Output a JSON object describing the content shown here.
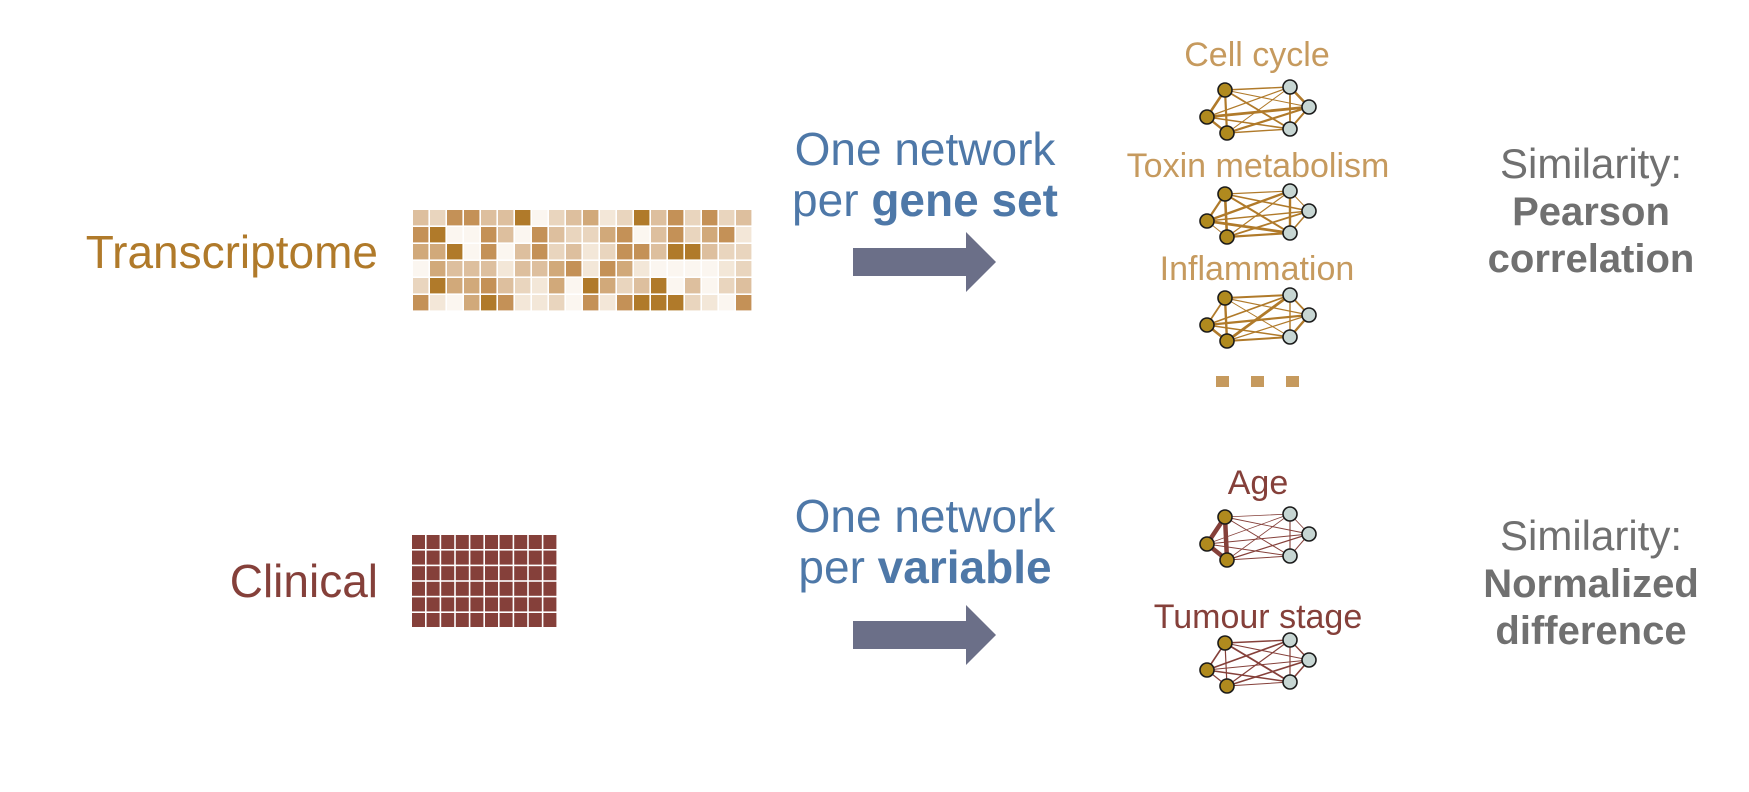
{
  "colors": {
    "transcriptome": "#B07A2A",
    "transcriptome_light": "#C69A5E",
    "clinical": "#85403A",
    "blue": "#4E78A8",
    "arrow": "#6B6F88",
    "gray": "#707070",
    "node_gold": "#B08A1E",
    "node_blue": "#C7D6D3"
  },
  "rows": [
    {
      "id": "transcriptome",
      "data_label": "Transcriptome",
      "arrow_text_line1": "One network",
      "arrow_text_prefix": "per ",
      "arrow_text_bold": "gene set",
      "networks": [
        "Cell cycle",
        "Toxin metabolism",
        "Inflammation"
      ],
      "ellipsis": "…",
      "similarity_label": "Similarity:",
      "similarity_method_line1": "Pearson",
      "similarity_method_line2": "correlation"
    },
    {
      "id": "clinical",
      "data_label": "Clinical",
      "arrow_text_line1": "One network",
      "arrow_text_prefix": "per ",
      "arrow_text_bold": "variable",
      "networks": [
        "Age",
        "Tumour stage"
      ],
      "similarity_label": "Similarity:",
      "similarity_method_line1": "Normalized",
      "similarity_method_line2": "difference"
    }
  ]
}
